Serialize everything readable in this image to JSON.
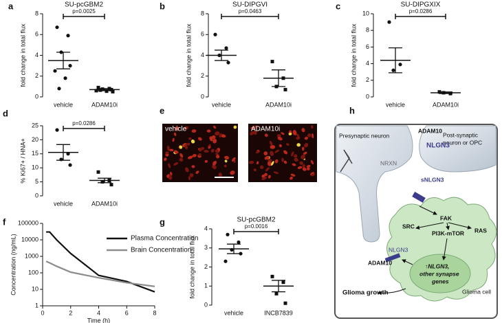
{
  "chart_data": [
    {
      "type": "dotplot",
      "panel": "a",
      "title": "SU-pcGBM2",
      "y_label": "fold change in total flux",
      "categories": [
        "vehicle",
        "ADAM10i"
      ],
      "points": [
        [
          6.7,
          5.9,
          4.3,
          3.0,
          2.5,
          1.8,
          0.8
        ],
        [
          0.9,
          0.8,
          0.75,
          0.7,
          0.6,
          0.55,
          0.65,
          0.5
        ]
      ],
      "mean": [
        3.5,
        0.7
      ],
      "sem": [
        0.8,
        0.1
      ],
      "p_label": "p=0.0025",
      "ylim": [
        0,
        8
      ],
      "yticks": [
        0,
        2,
        4,
        6,
        8
      ],
      "color": "#111111"
    },
    {
      "type": "dotplot",
      "panel": "b",
      "title": "SU-DIPGVI",
      "y_label": "fold change in total flux",
      "categories": [
        "vehicle",
        "ADAM10i"
      ],
      "points": [
        [
          6.0,
          4.7,
          4.0,
          3.3
        ],
        [
          3.4,
          1.8,
          1.0,
          0.7
        ]
      ],
      "mean": [
        4.0,
        1.8
      ],
      "sem": [
        0.5,
        0.8
      ],
      "p_label": "p=0.0463",
      "ylim": [
        0,
        8
      ],
      "yticks": [
        0,
        2,
        4,
        6,
        8
      ],
      "color": "#111111"
    },
    {
      "type": "dotplot",
      "panel": "c",
      "title": "SU-DIPGXIX",
      "y_label": "fold change in total flux",
      "categories": [
        "vehicle",
        "ADAM10i"
      ],
      "points": [
        [
          9.0,
          3.9,
          3.2
        ],
        [
          0.6,
          0.4,
          0.5
        ]
      ],
      "mean": [
        4.4,
        0.5
      ],
      "sem": [
        1.5,
        0.1
      ],
      "p_label": "p=0.0286",
      "ylim": [
        0,
        10
      ],
      "yticks": [
        0,
        2,
        4,
        6,
        8,
        10
      ],
      "color": "#111111"
    },
    {
      "type": "dotplot",
      "panel": "d",
      "y_label": "% Ki67+ / HNA+",
      "categories": [
        "vehicle",
        "ADAM10i"
      ],
      "points": [
        [
          23.5,
          15,
          13,
          11
        ],
        [
          8.5,
          5.5,
          5,
          4
        ]
      ],
      "mean": [
        15.5,
        5.5
      ],
      "sem": [
        2.8,
        0.8
      ],
      "p_label": "p=0.0286",
      "ylim": [
        0,
        25
      ],
      "yticks": [
        0,
        5,
        10,
        15,
        20,
        25
      ],
      "color": "#111111"
    },
    {
      "type": "line",
      "panel": "f",
      "x_label": "Time (h)",
      "y_label": "Concentration (ng/mL)",
      "log_y": true,
      "legend": "right",
      "x": [
        0.25,
        0.5,
        1,
        2,
        4,
        6,
        8
      ],
      "series": [
        {
          "name": "Plasma Concentration",
          "color": "#111111",
          "values": [
            30000,
            30000,
            10000,
            1500,
            70,
            30,
            7
          ]
        },
        {
          "name": "Brain Concentration",
          "color": "#8c8c8c",
          "values": [
            500,
            400,
            250,
            110,
            50,
            25,
            15
          ]
        }
      ],
      "xlim": [
        0,
        8
      ],
      "xticks": [
        0,
        2,
        4,
        6,
        8
      ],
      "ylim": [
        1,
        100000
      ],
      "yticks": [
        1,
        10,
        100,
        1000,
        10000,
        100000
      ]
    },
    {
      "type": "dotplot",
      "panel": "g",
      "title": "SU-pcGBM2",
      "y_label": "fold change in total flux",
      "categories": [
        "vehicle",
        "INCB7839"
      ],
      "points": [
        [
          3.7,
          3.3,
          2.9,
          2.7,
          2.3
        ],
        [
          1.5,
          1.2,
          0.6,
          0.1
        ]
      ],
      "mean": [
        2.95,
        1.0
      ],
      "sem": [
        0.25,
        0.3
      ],
      "p_label": "p=0.0016",
      "ylim": [
        0,
        4
      ],
      "yticks": [
        0,
        1,
        2,
        3,
        4
      ],
      "color": "#111111"
    }
  ],
  "micrograph": {
    "panel": "e",
    "labels": [
      "vehicle",
      "ADAM10i"
    ]
  },
  "diagram": {
    "panel": "h",
    "texts": {
      "presynaptic": "Presynaptic neuron",
      "adam10_top": "ADAM10",
      "post_line1": "Post-synaptic",
      "post_line2": "neuron or OPC",
      "nlgn3_top": "NLGN3",
      "nrxn": "NRXN",
      "snlgn3": "sNLGN3",
      "fak": "FAK",
      "src": "SRC",
      "ras": "RAS",
      "pi3k": "PI3K-mTOR",
      "nlgn3_cell": "NLGN3",
      "adam10_cell": "ADAM10",
      "nucleus_line1": "↑NLGN3,",
      "nucleus_line2": "other synapse",
      "nucleus_line3": "genes",
      "glioma_cell": "Glioma cell",
      "glioma_growth": "Glioma growth"
    }
  }
}
